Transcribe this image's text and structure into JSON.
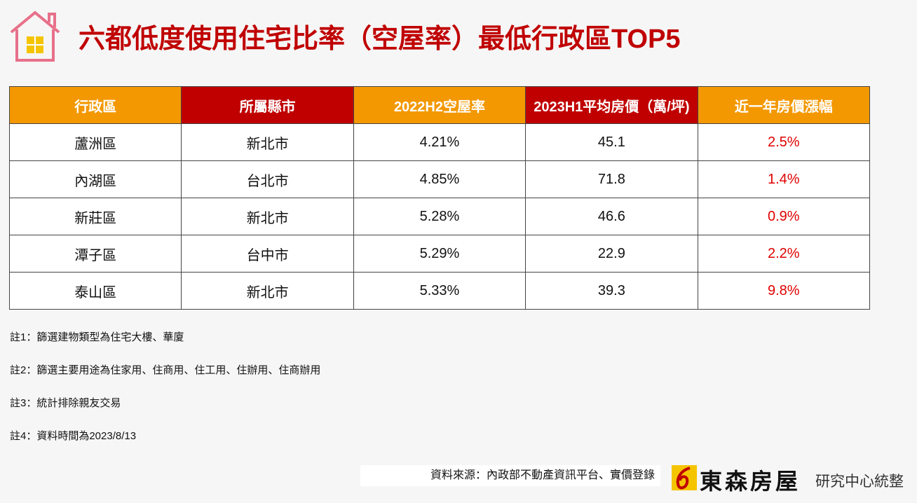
{
  "header": {
    "title": "六都低度使用住宅比率（空屋率）最低行政區TOP5"
  },
  "table": {
    "headers": [
      "行政區",
      "所屬縣市",
      "2022H2空屋率",
      "2023H1平均房價（萬/坪)",
      "近一年房價漲幅"
    ],
    "rows": [
      [
        "蘆洲區",
        "新北市",
        "4.21%",
        "45.1",
        "2.5%"
      ],
      [
        "內湖區",
        "台北市",
        "4.85%",
        "71.8",
        "1.4%"
      ],
      [
        "新莊區",
        "新北市",
        "5.28%",
        "46.6",
        "0.9%"
      ],
      [
        "潭子區",
        "台中市",
        "5.29%",
        "22.9",
        "2.2%"
      ],
      [
        "泰山區",
        "新北市",
        "5.33%",
        "39.3",
        "9.8%"
      ]
    ]
  },
  "notes": [
    "註1：篩選建物類型為住宅大樓、華廈",
    "註2：篩選主要用途為住家用、住商用、住工用、住辦用、住商辦用",
    "註3：統計排除親友交易",
    "註4：資料時間為2023/8/13"
  ],
  "source": "資料來源：內政部不動產資訊平台、實價登錄",
  "brand": {
    "name": "東森房屋",
    "suffix": "研究中心統整"
  }
}
